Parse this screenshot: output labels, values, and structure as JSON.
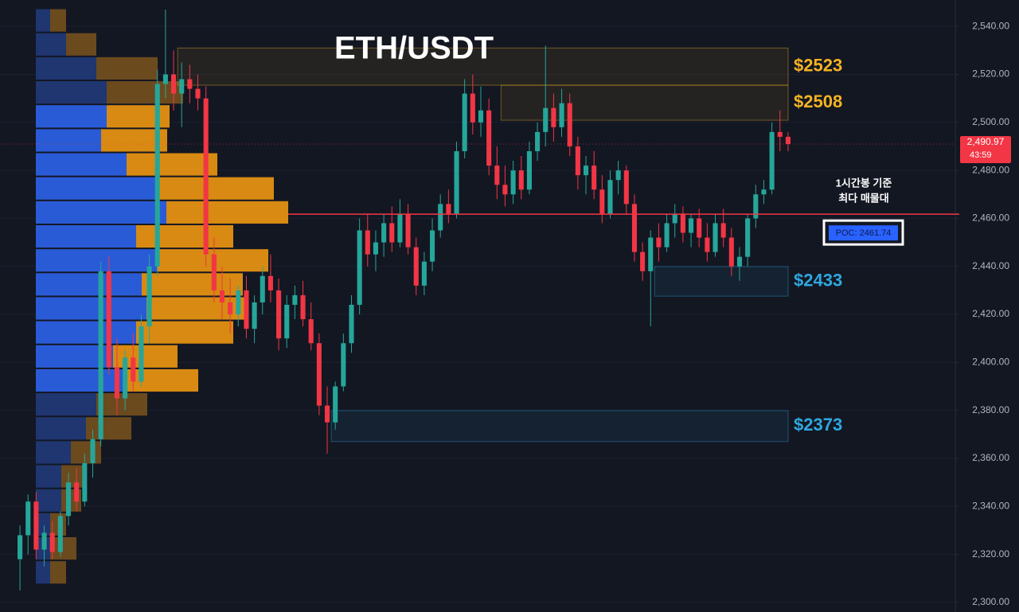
{
  "chart_data": {
    "type": "candlestick",
    "title": "ETH/USDT",
    "open": [
      2318,
      2328,
      2342,
      2322,
      2329,
      2321,
      2336,
      2350,
      2342,
      2358,
      2368,
      2438,
      2398,
      2385,
      2402,
      2392,
      2415,
      2440,
      2516,
      2520,
      2512,
      2518,
      2514,
      2510,
      2445,
      2430,
      2425,
      2420,
      2430,
      2414,
      2425,
      2436,
      2430,
      2410,
      2424,
      2428,
      2418,
      2408,
      2382,
      2375,
      2390,
      2408,
      2424,
      2455,
      2445,
      2450,
      2458,
      2450,
      2462,
      2448,
      2432,
      2442,
      2455,
      2466,
      2462,
      2488,
      2512,
      2500,
      2505,
      2482,
      2474,
      2470,
      2480,
      2472,
      2488,
      2496,
      2506,
      2498,
      2508,
      2490,
      2478,
      2482,
      2472,
      2462,
      2476,
      2480,
      2466,
      2446,
      2438,
      2452,
      2448,
      2458,
      2462,
      2454,
      2460,
      2452,
      2446,
      2458,
      2452,
      2440,
      2444,
      2460,
      2470,
      2472,
      2496,
      2494
    ],
    "high": [
      2332,
      2345,
      2346,
      2332,
      2334,
      2338,
      2354,
      2356,
      2362,
      2372,
      2442,
      2444,
      2410,
      2405,
      2412,
      2420,
      2445,
      2522,
      2547,
      2530,
      2525,
      2524,
      2520,
      2515,
      2452,
      2440,
      2435,
      2432,
      2436,
      2428,
      2440,
      2445,
      2435,
      2428,
      2432,
      2434,
      2425,
      2412,
      2390,
      2392,
      2412,
      2428,
      2460,
      2462,
      2455,
      2462,
      2465,
      2468,
      2466,
      2452,
      2446,
      2460,
      2470,
      2472,
      2492,
      2518,
      2520,
      2515,
      2510,
      2490,
      2482,
      2484,
      2486,
      2492,
      2500,
      2532,
      2512,
      2514,
      2512,
      2494,
      2486,
      2488,
      2478,
      2480,
      2484,
      2482,
      2470,
      2450,
      2455,
      2458,
      2462,
      2466,
      2465,
      2462,
      2464,
      2458,
      2462,
      2464,
      2456,
      2448,
      2462,
      2474,
      2476,
      2500,
      2505,
      2496
    ],
    "low": [
      2305,
      2320,
      2318,
      2315,
      2318,
      2319,
      2332,
      2338,
      2340,
      2352,
      2365,
      2395,
      2378,
      2380,
      2388,
      2390,
      2408,
      2436,
      2510,
      2505,
      2498,
      2508,
      2505,
      2440,
      2425,
      2418,
      2412,
      2415,
      2410,
      2408,
      2420,
      2425,
      2405,
      2406,
      2418,
      2415,
      2405,
      2378,
      2362,
      2372,
      2388,
      2404,
      2420,
      2440,
      2438,
      2444,
      2446,
      2448,
      2445,
      2428,
      2428,
      2438,
      2452,
      2458,
      2460,
      2485,
      2495,
      2494,
      2478,
      2468,
      2465,
      2466,
      2468,
      2470,
      2484,
      2490,
      2492,
      2494,
      2486,
      2472,
      2470,
      2468,
      2458,
      2460,
      2470,
      2462,
      2442,
      2434,
      2415,
      2442,
      2446,
      2452,
      2450,
      2448,
      2448,
      2442,
      2444,
      2448,
      2436,
      2434,
      2440,
      2456,
      2466,
      2470,
      2488,
      2488
    ],
    "close": [
      2328,
      2342,
      2322,
      2329,
      2321,
      2336,
      2350,
      2342,
      2358,
      2368,
      2438,
      2398,
      2385,
      2402,
      2392,
      2415,
      2440,
      2516,
      2520,
      2512,
      2518,
      2514,
      2510,
      2445,
      2430,
      2425,
      2420,
      2430,
      2414,
      2425,
      2436,
      2430,
      2410,
      2424,
      2428,
      2418,
      2408,
      2382,
      2375,
      2390,
      2408,
      2424,
      2455,
      2445,
      2450,
      2458,
      2450,
      2462,
      2448,
      2432,
      2442,
      2455,
      2466,
      2462,
      2488,
      2512,
      2500,
      2505,
      2482,
      2474,
      2470,
      2480,
      2472,
      2488,
      2496,
      2506,
      2498,
      2508,
      2490,
      2478,
      2482,
      2472,
      2462,
      2476,
      2480,
      2466,
      2446,
      2438,
      2452,
      2448,
      2458,
      2462,
      2454,
      2460,
      2452,
      2446,
      2458,
      2452,
      2440,
      2444,
      2460,
      2470,
      2472,
      2496,
      2494,
      2490.97
    ],
    "up_color": "#26a69a",
    "down_color": "#f23645",
    "ylim": [
      2296,
      2551
    ],
    "yticks": [
      {
        "value": 2300,
        "label": "2,300.00"
      },
      {
        "value": 2320,
        "label": "2,320.00"
      },
      {
        "value": 2340,
        "label": "2,340.00"
      },
      {
        "value": 2360,
        "label": "2,360.00"
      },
      {
        "value": 2380,
        "label": "2,380.00"
      },
      {
        "value": 2400,
        "label": "2,400.00"
      },
      {
        "value": 2420,
        "label": "2,420.00"
      },
      {
        "value": 2440,
        "label": "2,440.00"
      },
      {
        "value": 2460,
        "label": "2,460.00"
      },
      {
        "value": 2480,
        "label": "2,480.00"
      },
      {
        "value": 2500,
        "label": "2,500.00"
      },
      {
        "value": 2520,
        "label": "2,520.00"
      },
      {
        "value": 2540,
        "label": "2,540.00"
      }
    ],
    "grid": true,
    "last_price": {
      "value": 2490.97,
      "label": "2,490.97",
      "countdown": "43:59",
      "color": "#f23645"
    },
    "volume_profile": {
      "bins": [
        2307.5,
        2317.5,
        2327.5,
        2337.5,
        2347.5,
        2357.5,
        2367.5,
        2377.5,
        2387.5,
        2397.5,
        2407.5,
        2417.5,
        2427.5,
        2437.5,
        2447.5,
        2457.5,
        2467.5,
        2477.5,
        2487.5,
        2497.5,
        2507.5,
        2517.5,
        2527.5,
        2537.5,
        2547.5
      ],
      "buy": [
        18,
        18,
        18,
        32,
        32,
        44,
        63,
        76,
        111,
        97,
        126,
        139,
        133,
        152,
        126,
        164,
        152,
        114,
        82,
        89,
        89,
        76,
        38,
        18
      ],
      "sell": [
        20,
        33,
        20,
        25,
        31,
        38,
        57,
        64,
        93,
        81,
        122,
        127,
        127,
        140,
        122,
        153,
        147,
        114,
        83,
        79,
        96,
        77,
        38,
        20
      ],
      "value_area": [
        2387.5,
        2507.5
      ],
      "buy_color": "#2a5bd7",
      "sell_color": "#d88a12",
      "buy_color_dim": "#1f3670",
      "sell_color_dim": "#6b4a1e"
    },
    "poc": {
      "value": 2461.74,
      "label": "POC: 2461.74",
      "color": "#f23645",
      "note": [
        "1시간봉 기준",
        "최다 매물대"
      ]
    },
    "zones": [
      {
        "label": "$2523",
        "low": 2515.5,
        "high": 2531,
        "start": 20,
        "color": "#f5b324"
      },
      {
        "label": "$2508",
        "low": 2500.9,
        "high": 2515.5,
        "start": 60,
        "color": "#f5b324"
      },
      {
        "label": "$2433",
        "low": 2427.6,
        "high": 2439.9,
        "start": 79,
        "color": "#2ea8e0"
      },
      {
        "label": "$2373",
        "low": 2367,
        "high": 2379.9,
        "start": 39,
        "color": "#2ea8e0"
      }
    ]
  }
}
